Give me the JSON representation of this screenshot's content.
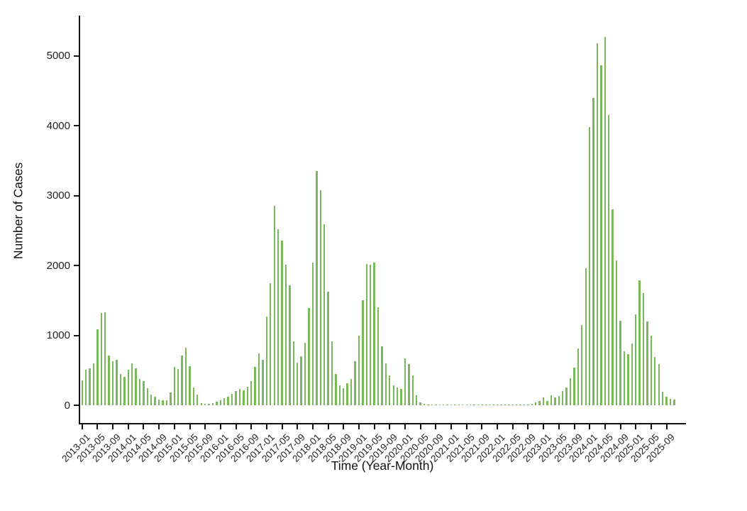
{
  "figure": {
    "background": "#ffffff",
    "axis_color": "#111111",
    "text_color": "#1f1f1f"
  },
  "chart_data": {
    "type": "bar",
    "title": "",
    "xlabel": "Time (Year-Month)",
    "ylabel": "Number of Cases",
    "bar_color": "#79b95b",
    "ylim": [
      0,
      5400
    ],
    "yticks": [
      0,
      1000,
      2000,
      3000,
      4000,
      5000
    ],
    "grid": "off",
    "legend": "none",
    "x_tick_labels": [
      "2013-01",
      "2013-05",
      "2013-09",
      "2014-01",
      "2014-05",
      "2014-09",
      "2015-01",
      "2015-05",
      "2015-09",
      "2016-01",
      "2016-05",
      "2016-09",
      "2017-01",
      "2017-05",
      "2017-09",
      "2018-01",
      "2018-05",
      "2018-09",
      "2019-01",
      "2019-05",
      "2019-09",
      "2020-01",
      "2020-05",
      "2020-09",
      "2021-01",
      "2021-05",
      "2021-09",
      "2022-01",
      "2022-05",
      "2022-09",
      "2023-01",
      "2023-05",
      "2023-09",
      "2024-01",
      "2024-05",
      "2024-09",
      "2025-01",
      "2025-05",
      "2025-09"
    ],
    "months": [
      "2013-01",
      "2013-02",
      "2013-03",
      "2013-04",
      "2013-05",
      "2013-06",
      "2013-07",
      "2013-08",
      "2013-09",
      "2013-10",
      "2013-11",
      "2013-12",
      "2014-01",
      "2014-02",
      "2014-03",
      "2014-04",
      "2014-05",
      "2014-06",
      "2014-07",
      "2014-08",
      "2014-09",
      "2014-10",
      "2014-11",
      "2014-12",
      "2015-01",
      "2015-02",
      "2015-03",
      "2015-04",
      "2015-05",
      "2015-06",
      "2015-07",
      "2015-08",
      "2015-09",
      "2015-10",
      "2015-11",
      "2015-12",
      "2016-01",
      "2016-02",
      "2016-03",
      "2016-04",
      "2016-05",
      "2016-06",
      "2016-07",
      "2016-08",
      "2016-09",
      "2016-10",
      "2016-11",
      "2016-12",
      "2017-01",
      "2017-02",
      "2017-03",
      "2017-04",
      "2017-05",
      "2017-06",
      "2017-07",
      "2017-08",
      "2017-09",
      "2017-10",
      "2017-11",
      "2017-12",
      "2018-01",
      "2018-02",
      "2018-03",
      "2018-04",
      "2018-05",
      "2018-06",
      "2018-07",
      "2018-08",
      "2018-09",
      "2018-10",
      "2018-11",
      "2018-12",
      "2019-01",
      "2019-02",
      "2019-03",
      "2019-04",
      "2019-05",
      "2019-06",
      "2019-07",
      "2019-08",
      "2019-09",
      "2019-10",
      "2019-11",
      "2019-12",
      "2020-01",
      "2020-02",
      "2020-03",
      "2020-04",
      "2020-05",
      "2020-06",
      "2020-07",
      "2020-08",
      "2020-09",
      "2020-10",
      "2020-11",
      "2020-12",
      "2021-01",
      "2021-02",
      "2021-03",
      "2021-04",
      "2021-05",
      "2021-06",
      "2021-07",
      "2021-08",
      "2021-09",
      "2021-10",
      "2021-11",
      "2021-12",
      "2022-01",
      "2022-02",
      "2022-03",
      "2022-04",
      "2022-05",
      "2022-06",
      "2022-07",
      "2022-08",
      "2022-09",
      "2022-10",
      "2022-11",
      "2022-12",
      "2023-01",
      "2023-02",
      "2023-03",
      "2023-04",
      "2023-05",
      "2023-06",
      "2023-07",
      "2023-08",
      "2023-09",
      "2023-10",
      "2023-11",
      "2023-12",
      "2024-01",
      "2024-02",
      "2024-03",
      "2024-04",
      "2024-05",
      "2024-06",
      "2024-07",
      "2024-08",
      "2024-09",
      "2024-10",
      "2024-11",
      "2024-12",
      "2025-01",
      "2025-02",
      "2025-03",
      "2025-04",
      "2025-05",
      "2025-06",
      "2025-07",
      "2025-08",
      "2025-09",
      "2025-10",
      "2025-11"
    ],
    "values": [
      360,
      505,
      530,
      600,
      1090,
      1320,
      1330,
      710,
      625,
      645,
      450,
      410,
      510,
      595,
      530,
      375,
      350,
      240,
      155,
      120,
      85,
      70,
      70,
      180,
      545,
      520,
      710,
      820,
      555,
      255,
      150,
      35,
      20,
      17,
      34,
      50,
      70,
      100,
      125,
      160,
      200,
      235,
      215,
      260,
      350,
      550,
      740,
      650,
      1270,
      1750,
      2850,
      2520,
      2360,
      2010,
      1715,
      915,
      610,
      700,
      895,
      1390,
      2045,
      3350,
      3080,
      2590,
      1625,
      910,
      450,
      280,
      240,
      315,
      375,
      630,
      995,
      1505,
      2020,
      2010,
      2040,
      1405,
      845,
      595,
      425,
      280,
      250,
      230,
      675,
      590,
      425,
      140,
      40,
      17,
      12,
      10,
      8,
      6,
      8,
      5,
      6,
      8,
      5,
      6,
      9,
      8,
      6,
      5,
      8,
      9,
      6,
      8,
      10,
      9,
      8,
      12,
      10,
      9,
      13,
      12,
      15,
      20,
      40,
      60,
      110,
      65,
      140,
      115,
      135,
      200,
      250,
      390,
      540,
      810,
      1150,
      1955,
      3980,
      4400,
      5180,
      4860,
      5270,
      4150,
      2800,
      2070,
      1210,
      770,
      730,
      880,
      1300,
      1790,
      1605,
      1195,
      990,
      690,
      590,
      190,
      120,
      90,
      80
    ]
  }
}
